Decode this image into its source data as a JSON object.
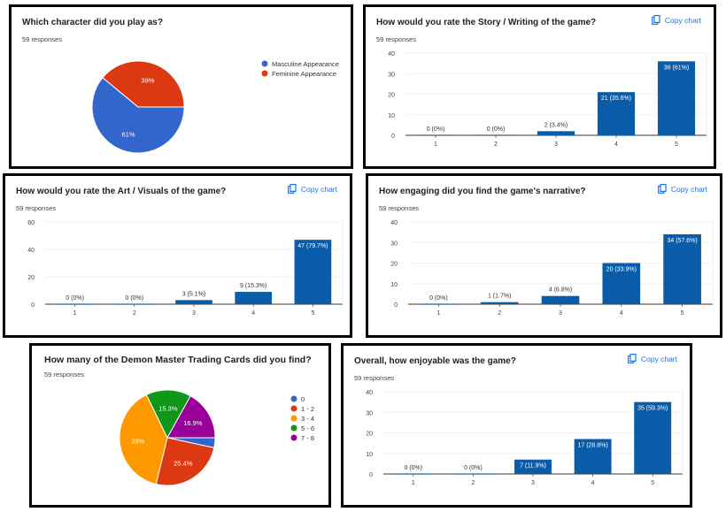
{
  "copy_label": "Copy chart",
  "chart_data": [
    {
      "type": "pie",
      "title": "Which character did you play as?",
      "responses": "59 responses",
      "labels": [
        "Masculine Appearance",
        "Feminine Appearance"
      ],
      "values": [
        36,
        23
      ],
      "slice_labels": [
        "61%",
        "39%"
      ],
      "colors": [
        "#3366cc",
        "#dc3912"
      ],
      "legend": "right"
    },
    {
      "type": "bar",
      "title": "How would you rate the Story / Writing of the game?",
      "responses": "59 responses",
      "categories": [
        "1",
        "2",
        "3",
        "4",
        "5"
      ],
      "values": [
        0,
        0,
        2,
        21,
        36
      ],
      "data_labels": [
        "0 (0%)",
        "0 (0%)",
        "2 (3.4%)",
        "21 (35.6%)",
        "36 (61%)"
      ],
      "ylim": [
        0,
        40
      ],
      "yticks": [
        "0",
        "10",
        "20",
        "30",
        "40"
      ],
      "color": "#0b5ca8"
    },
    {
      "type": "bar",
      "title": "How would you rate the Art / Visuals of the game?",
      "responses": "59 responses",
      "categories": [
        "1",
        "2",
        "3",
        "4",
        "5"
      ],
      "values": [
        0,
        0,
        3,
        9,
        47
      ],
      "data_labels": [
        "0 (0%)",
        "0 (0%)",
        "3 (5.1%)",
        "9 (15.3%)",
        "47 (79.7%)"
      ],
      "ylim": [
        0,
        60
      ],
      "yticks": [
        "0",
        "20",
        "40",
        "60"
      ],
      "color": "#0b5ca8"
    },
    {
      "type": "bar",
      "title": "How engaging did you find the game's narrative?",
      "responses": "59 responses",
      "categories": [
        "1",
        "2",
        "3",
        "4",
        "5"
      ],
      "values": [
        0,
        1,
        4,
        20,
        34
      ],
      "data_labels": [
        "0 (0%)",
        "1 (1.7%)",
        "4 (6.8%)",
        "20 (33.9%)",
        "34 (57.6%)"
      ],
      "ylim": [
        0,
        40
      ],
      "yticks": [
        "0",
        "10",
        "20",
        "30",
        "40"
      ],
      "color": "#0b5ca8"
    },
    {
      "type": "pie",
      "title": "How many of the Demon Master Trading Cards did you find?",
      "responses": "59 responses",
      "labels": [
        "0",
        "1 - 2",
        "3 - 4",
        "5 - 6",
        "7 - 8"
      ],
      "values": [
        2,
        15,
        23,
        9,
        10
      ],
      "slice_labels": [
        "",
        "25.4%",
        "39%",
        "15.3%",
        "16.9%"
      ],
      "colors": [
        "#3366cc",
        "#dc3912",
        "#ff9900",
        "#109618",
        "#990099"
      ],
      "legend": "right"
    },
    {
      "type": "bar",
      "title": "Overall, how enjoyable was the game?",
      "responses": "59 responses",
      "categories": [
        "1",
        "2",
        "3",
        "4",
        "5"
      ],
      "values": [
        0,
        0,
        7,
        17,
        35
      ],
      "data_labels": [
        "0 (0%)",
        "0 (0%)",
        "7 (11.9%)",
        "17 (28.8%)",
        "35 (59.3%)"
      ],
      "ylim": [
        0,
        40
      ],
      "yticks": [
        "0",
        "10",
        "20",
        "30",
        "40"
      ],
      "color": "#0b5ca8"
    }
  ]
}
